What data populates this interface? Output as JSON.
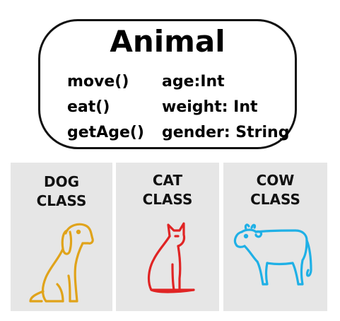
{
  "class": {
    "title": "Animal",
    "methods": [
      "move()",
      "eat()",
      "getAge()"
    ],
    "attributes": [
      "age:Int",
      "weight: Int",
      "gender: String"
    ]
  },
  "subclasses": [
    {
      "line1": "DOG",
      "line2": "CLASS",
      "icon": "dog-icon",
      "color": "#e0a31a"
    },
    {
      "line1": "CAT",
      "line2": "CLASS",
      "icon": "cat-icon",
      "color": "#e02424"
    },
    {
      "line1": "COW",
      "line2": "CLASS",
      "icon": "cow-icon",
      "color": "#1fb0e6"
    }
  ],
  "colors": {
    "panel_background": "#e6e6e6",
    "border": "#111111"
  }
}
